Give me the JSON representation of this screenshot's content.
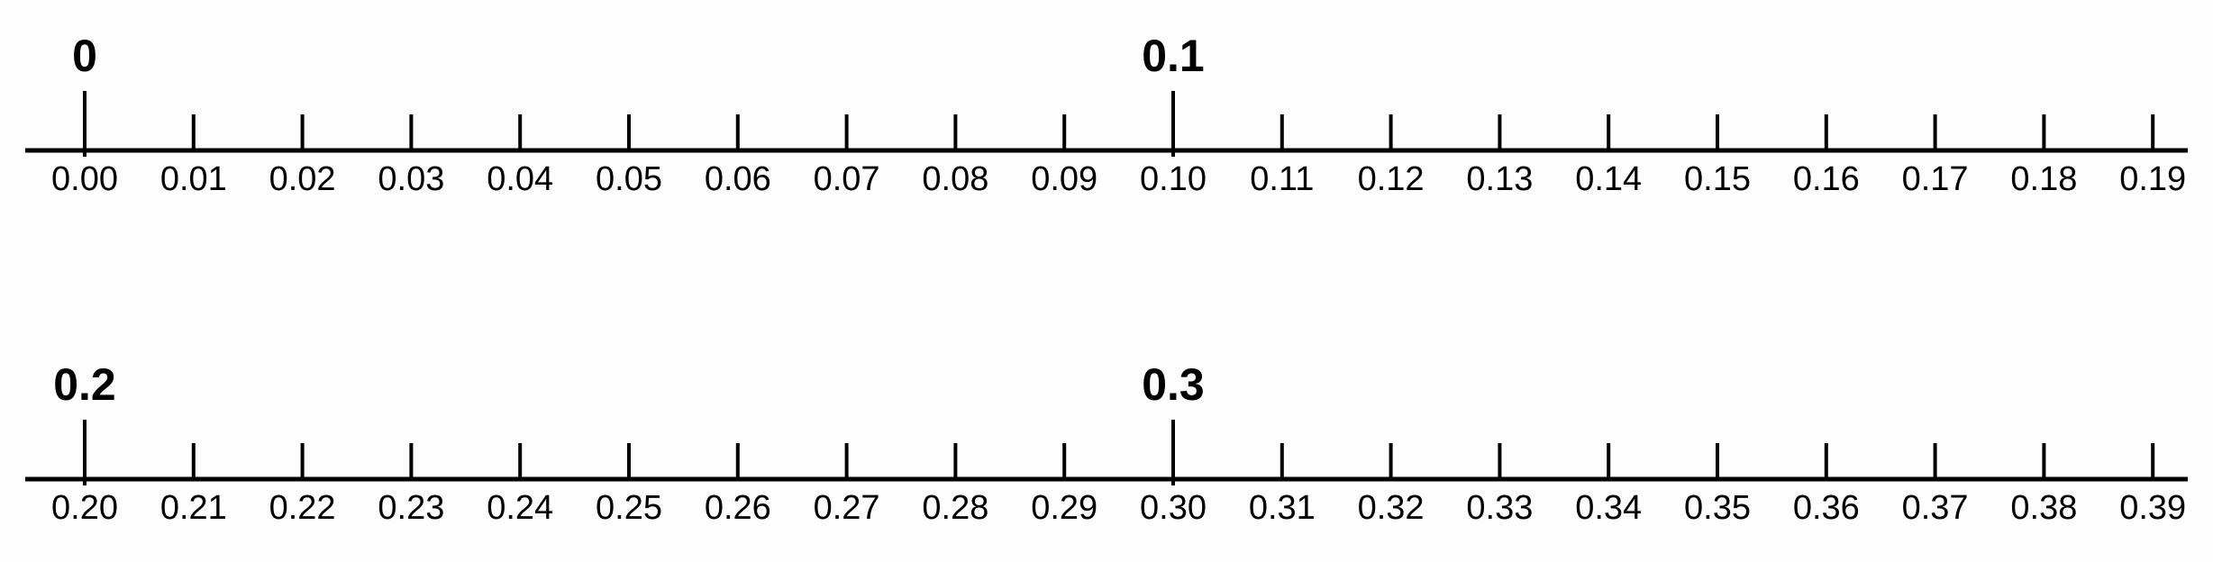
{
  "number_lines": [
    {
      "major_labels": [
        {
          "value": 0,
          "text": "0"
        },
        {
          "value": 0.1,
          "text": "0.1"
        }
      ],
      "ticks": [
        "0.00",
        "0.01",
        "0.02",
        "0.03",
        "0.04",
        "0.05",
        "0.06",
        "0.07",
        "0.08",
        "0.09",
        "0.10",
        "0.11",
        "0.12",
        "0.13",
        "0.14",
        "0.15",
        "0.16",
        "0.17",
        "0.18",
        "0.19"
      ]
    },
    {
      "major_labels": [
        {
          "value": 0.2,
          "text": "0.2"
        },
        {
          "value": 0.3,
          "text": "0.3"
        }
      ],
      "ticks": [
        "0.20",
        "0.21",
        "0.22",
        "0.23",
        "0.24",
        "0.25",
        "0.26",
        "0.27",
        "0.28",
        "0.29",
        "0.30",
        "0.31",
        "0.32",
        "0.33",
        "0.34",
        "0.35",
        "0.36",
        "0.37",
        "0.38",
        "0.39"
      ]
    }
  ],
  "colors": {
    "line": "#000000",
    "background": "#fcfdfc"
  }
}
